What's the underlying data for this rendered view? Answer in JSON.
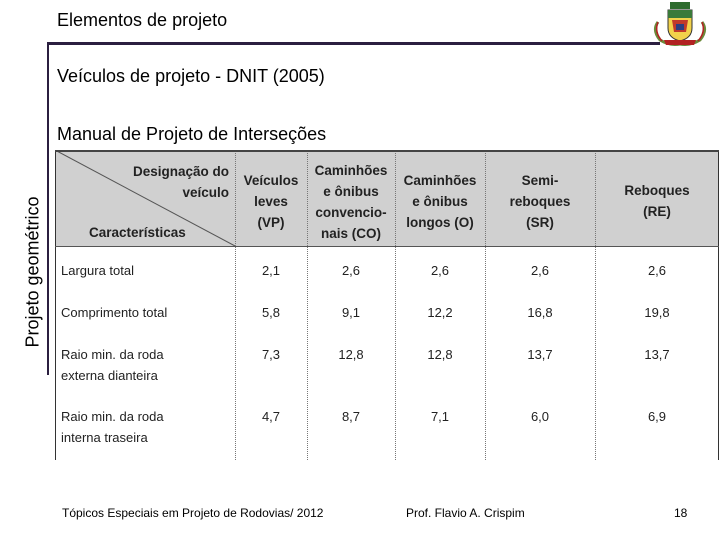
{
  "header": {
    "title": "Elementos de projeto"
  },
  "sidebar": {
    "label": "Projeto geométrico"
  },
  "content": {
    "subtitle": "Veículos de projeto  - DNIT (2005)",
    "manual": "Manual de Projeto de Interseções"
  },
  "table": {
    "corner_top_line1": "Designação do",
    "corner_top_line2": "veículo",
    "corner_bottom": "Características",
    "columns": [
      {
        "lines": [
          "Veículos",
          "leves",
          "(VP)"
        ]
      },
      {
        "lines": [
          "Caminhões",
          "e ônibus",
          "convencio-",
          "nais (CO)"
        ]
      },
      {
        "lines": [
          "Caminhões",
          "e ônibus",
          "longos (O)"
        ]
      },
      {
        "lines": [
          "Semi-",
          "reboques",
          "(SR)"
        ]
      },
      {
        "lines": [
          "Reboques",
          "(RE)"
        ]
      }
    ],
    "rows": [
      {
        "label": [
          "Largura total"
        ],
        "values": [
          "2,1",
          "2,6",
          "2,6",
          "2,6",
          "2,6"
        ]
      },
      {
        "label": [
          "Comprimento total"
        ],
        "values": [
          "5,8",
          "9,1",
          "12,2",
          "16,8",
          "19,8"
        ]
      },
      {
        "label": [
          "Raio min. da roda",
          "externa dianteira"
        ],
        "values": [
          "7,3",
          "12,8",
          "12,8",
          "13,7",
          "13,7"
        ]
      },
      {
        "label": [
          "Raio min. da roda",
          "interna traseira"
        ],
        "values": [
          "4,7",
          "8,7",
          "7,1",
          "6,0",
          "6,9"
        ]
      }
    ]
  },
  "footer": {
    "course": "Tópicos Especiais em Projeto de Rodovias/ 2012",
    "author": "Prof. Flavio  A. Crispim",
    "page": "18"
  }
}
